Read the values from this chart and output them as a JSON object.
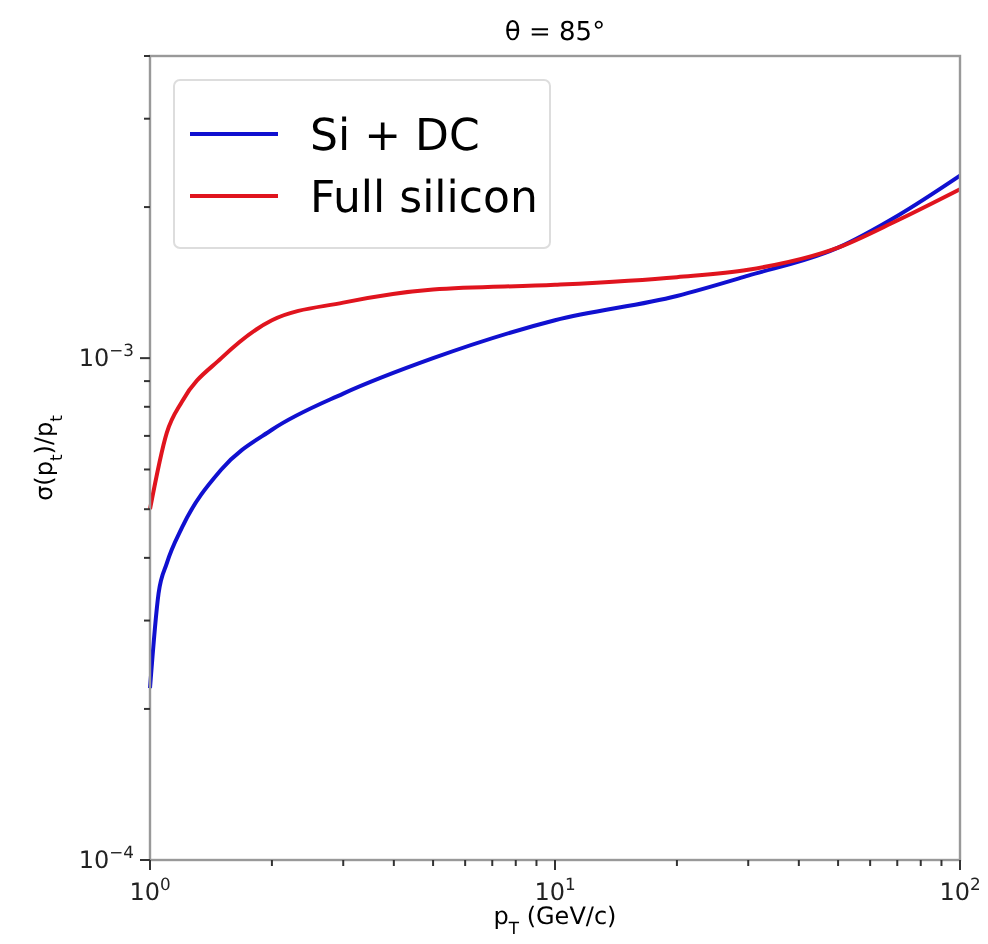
{
  "chart_data": {
    "type": "line",
    "title": "θ = 85°",
    "xlabel": "p$_{T}$ (GeV/c)",
    "ylabel": "σ(p$_{t}$)/p$_{t}$",
    "log": "xy",
    "legend": "top left",
    "grid": false,
    "xlim": [
      1,
      100
    ],
    "ylim": [
      0.0001,
      0.004
    ],
    "xticks": [
      {
        "value": 1,
        "label": "10$^{0}$"
      },
      {
        "value": 2,
        "label": null
      },
      {
        "value": 3,
        "label": null
      },
      {
        "value": 4,
        "label": null
      },
      {
        "value": 5,
        "label": null
      },
      {
        "value": 6,
        "label": null
      },
      {
        "value": 7,
        "label": null
      },
      {
        "value": 8,
        "label": null
      },
      {
        "value": 9,
        "label": null
      },
      {
        "value": 10,
        "label": "10$^{1}$"
      },
      {
        "value": 20,
        "label": null
      },
      {
        "value": 30,
        "label": null
      },
      {
        "value": 40,
        "label": null
      },
      {
        "value": 50,
        "label": null
      },
      {
        "value": 60,
        "label": null
      },
      {
        "value": 70,
        "label": null
      },
      {
        "value": 80,
        "label": null
      },
      {
        "value": 90,
        "label": null
      },
      {
        "value": 100,
        "label": "10$^{2}$"
      }
    ],
    "yticks": [
      {
        "value": 0.0001,
        "label": "10$^{−4}$"
      },
      {
        "value": 0.0002,
        "label": null
      },
      {
        "value": 0.0003,
        "label": null
      },
      {
        "value": 0.0004,
        "label": null
      },
      {
        "value": 0.0005,
        "label": null
      },
      {
        "value": 0.0006,
        "label": null
      },
      {
        "value": 0.0007,
        "label": null
      },
      {
        "value": 0.0008,
        "label": null
      },
      {
        "value": 0.0009,
        "label": null
      },
      {
        "value": 0.001,
        "label": "10$^{−3}$"
      },
      {
        "value": 0.002,
        "label": null
      },
      {
        "value": 0.003,
        "label": null
      },
      {
        "value": 0.004,
        "label": null
      }
    ],
    "x": [
      1,
      1.05,
      1.1,
      1.2,
      1.5,
      2,
      3,
      5,
      10,
      20,
      30,
      50,
      70,
      100
    ],
    "series": [
      {
        "name": "Si + DC",
        "color": "#1010d0",
        "values": [
          0.00022,
          0.00034,
          0.00039,
          0.00046,
          0.0006,
          0.00072,
          0.00085,
          0.001,
          0.00119,
          0.00133,
          0.00146,
          0.00166,
          0.00192,
          0.00231
        ]
      },
      {
        "name": "Full silicon",
        "color": "#e0141e",
        "x": [
          1,
          1.1,
          1.2,
          1.5,
          2,
          3,
          5,
          10,
          20,
          30,
          50,
          70,
          100
        ],
        "values": [
          0.0005,
          0.00071,
          0.00082,
          0.001,
          0.00119,
          0.00129,
          0.00137,
          0.0014,
          0.00145,
          0.0015,
          0.00166,
          0.00188,
          0.00217
        ]
      }
    ]
  }
}
